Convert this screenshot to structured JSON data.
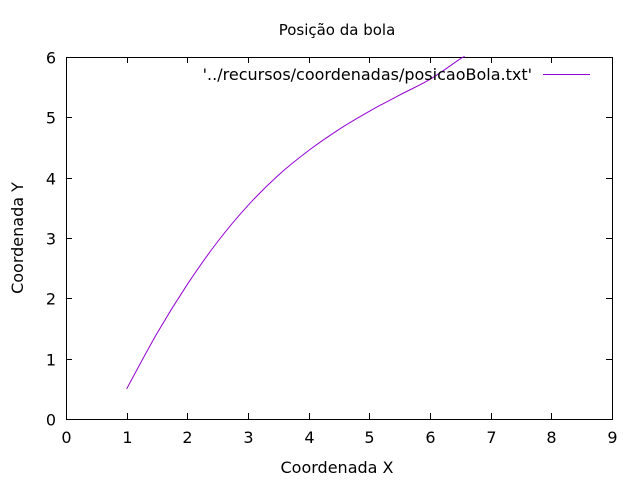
{
  "chart_data": {
    "type": "line",
    "title": "Posição da bola",
    "xlabel": "Coordenada X",
    "ylabel": "Coordenada Y",
    "xlim": [
      0,
      9
    ],
    "ylim": [
      0,
      6
    ],
    "xticks": [
      "0",
      "1",
      "2",
      "3",
      "4",
      "5",
      "6",
      "7",
      "8",
      "9"
    ],
    "yticks": [
      "0",
      "1",
      "2",
      "3",
      "4",
      "5",
      "6"
    ],
    "grid": false,
    "legend_position": "top-right",
    "series": [
      {
        "name": "'../recursos/coordenadas/posicaoBola.txt'",
        "color": "#9400d3",
        "x": [
          1.0,
          1.5,
          2.0,
          2.5,
          3.0,
          3.5,
          4.0,
          4.5,
          5.0,
          5.5,
          6.0,
          6.5,
          6.57
        ],
        "y": [
          0.5,
          1.42,
          2.23,
          2.94,
          3.54,
          4.04,
          4.45,
          4.8,
          5.1,
          5.37,
          5.63,
          5.97,
          6.0
        ]
      }
    ]
  }
}
